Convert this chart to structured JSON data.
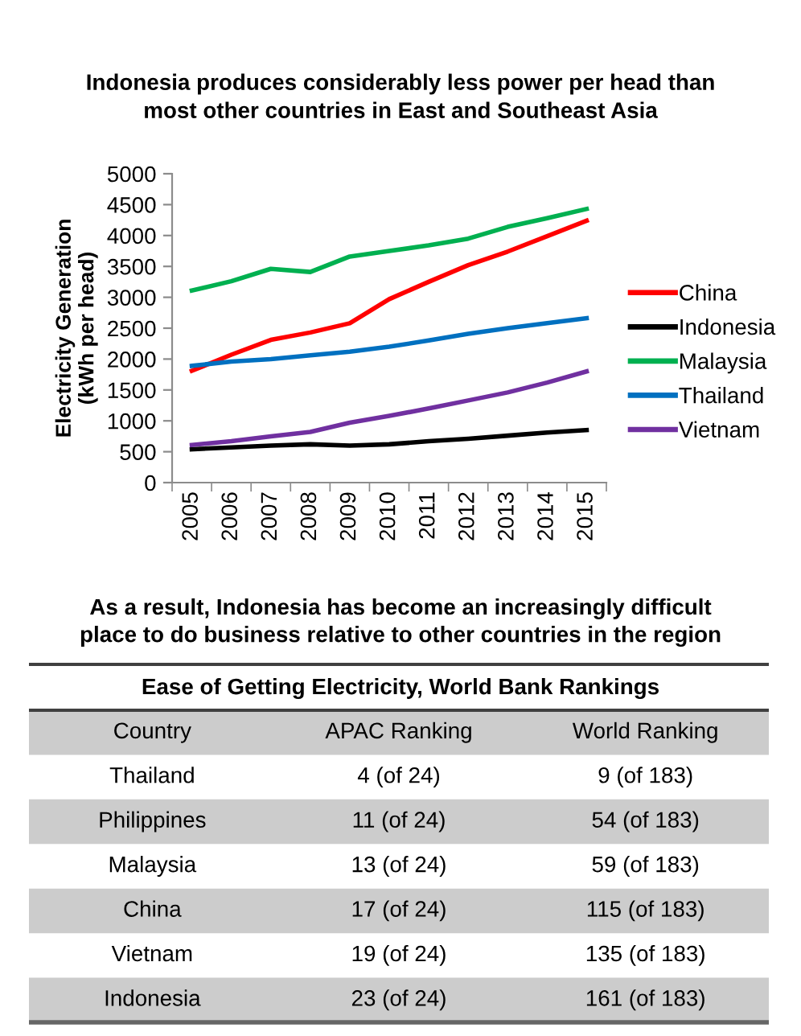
{
  "chart_data": [
    {
      "type": "line",
      "title": "Indonesia produces considerably less power per head than\nmost other countries in East and Southeast Asia",
      "ylabel": "Electricity Generation\n(kWh per head)",
      "categories": [
        "2005",
        "2006",
        "2007",
        "2008",
        "2009",
        "2010",
        "2011",
        "2012",
        "2013",
        "2014",
        "2015"
      ],
      "series": [
        {
          "name": "China",
          "color": "#ff0000",
          "values": [
            1810,
            2070,
            2310,
            2430,
            2580,
            2970,
            3250,
            3520,
            3740,
            3990,
            4240
          ]
        },
        {
          "name": "Indonesia",
          "color": "#000000",
          "values": [
            540,
            570,
            600,
            620,
            600,
            620,
            670,
            710,
            760,
            810,
            850
          ]
        },
        {
          "name": "Malaysia",
          "color": "#00b050",
          "values": [
            3110,
            3260,
            3460,
            3410,
            3660,
            3750,
            3840,
            3950,
            4140,
            4280,
            4430
          ]
        },
        {
          "name": "Thailand",
          "color": "#0070c0",
          "values": [
            1890,
            1960,
            2000,
            2060,
            2120,
            2200,
            2300,
            2410,
            2500,
            2580,
            2660
          ]
        },
        {
          "name": "Vietnam",
          "color": "#7030a0",
          "values": [
            610,
            670,
            750,
            820,
            970,
            1080,
            1200,
            1330,
            1460,
            1620,
            1800
          ]
        }
      ],
      "ylim": [
        0,
        5000
      ],
      "yticks": [
        0,
        500,
        1000,
        1500,
        2000,
        2500,
        3000,
        3500,
        4000,
        4500,
        5000
      ],
      "legend": "right"
    },
    {
      "type": "other",
      "title": "As a result, Indonesia has become an increasingly difficult\nplace to do business relative to other countries in the region",
      "subtitle": "Ease of Getting Electricity, World Bank Rankings",
      "categories": [
        "Country",
        "APAC Ranking",
        "World Ranking"
      ],
      "cell_labels": [
        [
          "Thailand",
          "4 (of 24)",
          "9 (of 183)"
        ],
        [
          "Philippines",
          "11 (of 24)",
          "54 (of 183)"
        ],
        [
          "Malaysia",
          "13 (of 24)",
          "59 (of 183)"
        ],
        [
          "China",
          "17 (of 24)",
          "115 (of 183)"
        ],
        [
          "Vietnam",
          "19 (of 24)",
          "135 (of 183)"
        ],
        [
          "Indonesia",
          "23 (of 24)",
          "161 (of 183)"
        ]
      ]
    }
  ]
}
